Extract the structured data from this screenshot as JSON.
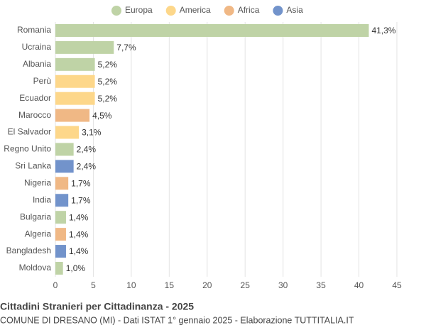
{
  "chart_data": {
    "type": "bar",
    "orientation": "horizontal",
    "title": "Cittadini Stranieri per Cittadinanza - 2025",
    "subtitle": "COMUNE DI DRESANO (MI) - Dati ISTAT 1° gennaio 2025 - Elaborazione TUTTITALIA.IT",
    "categories": [
      "Romania",
      "Ucraina",
      "Albania",
      "Perù",
      "Ecuador",
      "Marocco",
      "El Salvador",
      "Regno Unito",
      "Sri Lanka",
      "Nigeria",
      "India",
      "Bulgaria",
      "Algeria",
      "Bangladesh",
      "Moldova"
    ],
    "series": [
      {
        "name": "Europa",
        "color": "#bfd3a6",
        "values": [
          41.3,
          7.7,
          5.2,
          null,
          null,
          null,
          null,
          2.4,
          null,
          null,
          null,
          1.4,
          null,
          null,
          1.0
        ],
        "value_labels": [
          "41,3%",
          "7,7%",
          "5,2%",
          null,
          null,
          null,
          null,
          "2,4%",
          null,
          null,
          null,
          "1,4%",
          null,
          null,
          "1,0%"
        ]
      },
      {
        "name": "America",
        "color": "#fdd78a",
        "values": [
          null,
          null,
          null,
          5.2,
          5.2,
          null,
          3.1,
          null,
          null,
          null,
          null,
          null,
          null,
          null,
          null
        ],
        "value_labels": [
          null,
          null,
          null,
          "5,2%",
          "5,2%",
          null,
          "3,1%",
          null,
          null,
          null,
          null,
          null,
          null,
          null,
          null
        ]
      },
      {
        "name": "Africa",
        "color": "#f0b885",
        "values": [
          null,
          null,
          null,
          null,
          null,
          4.5,
          null,
          null,
          null,
          1.7,
          null,
          null,
          1.4,
          null,
          null
        ],
        "value_labels": [
          null,
          null,
          null,
          null,
          null,
          "4,5%",
          null,
          null,
          null,
          "1,7%",
          null,
          null,
          "1,4%",
          null,
          null
        ]
      },
      {
        "name": "Asia",
        "color": "#7293cb",
        "values": [
          null,
          null,
          null,
          null,
          null,
          null,
          null,
          null,
          2.4,
          null,
          1.7,
          null,
          null,
          1.4,
          null
        ],
        "value_labels": [
          null,
          null,
          null,
          null,
          null,
          null,
          null,
          null,
          "2,4%",
          null,
          "1,7%",
          null,
          null,
          "1,4%",
          null
        ]
      }
    ],
    "xlim": [
      0,
      45
    ],
    "xticks": [
      0,
      5,
      10,
      15,
      20,
      25,
      30,
      35,
      40,
      45
    ],
    "grid": true,
    "legend": "top"
  }
}
